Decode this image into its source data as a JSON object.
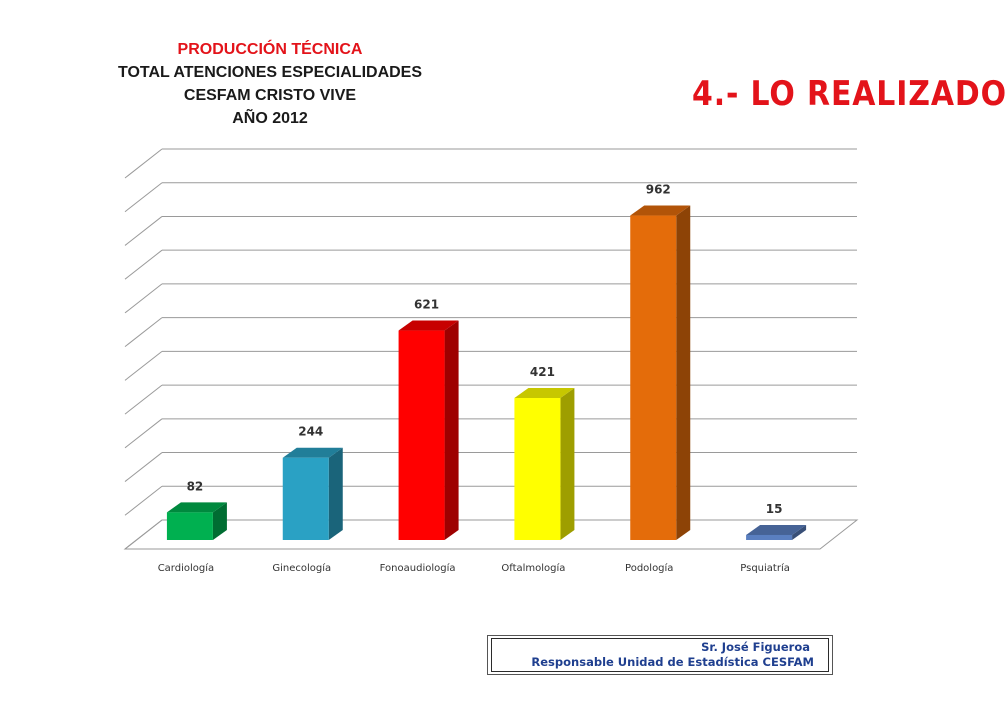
{
  "heading": "4.- LO REALIZADO",
  "credit": {
    "line1": "Sr. José Figueroa",
    "line2": "Responsable Unidad de Estadística CESFAM"
  },
  "chart_data": {
    "type": "bar",
    "title_lines": [
      "PRODUCCIÓN TÉCNICA",
      "TOTAL ATENCIONES ESPECIALIDADES",
      "CESFAM CRISTO VIVE",
      "AÑO 2012"
    ],
    "categories": [
      "Cardiología",
      "Ginecología",
      "Fonoaudiología",
      "Oftalmología",
      "Podología",
      "Psquiatría"
    ],
    "values": [
      82,
      244,
      621,
      421,
      962,
      15
    ],
    "colors": [
      "#00b050",
      "#2aa1c4",
      "#ff0000",
      "#ffff00",
      "#e46c0a",
      "#5a7fc0"
    ],
    "ylim": [
      0,
      1100
    ],
    "grid": true,
    "legend": "none",
    "style": "3d-column"
  }
}
